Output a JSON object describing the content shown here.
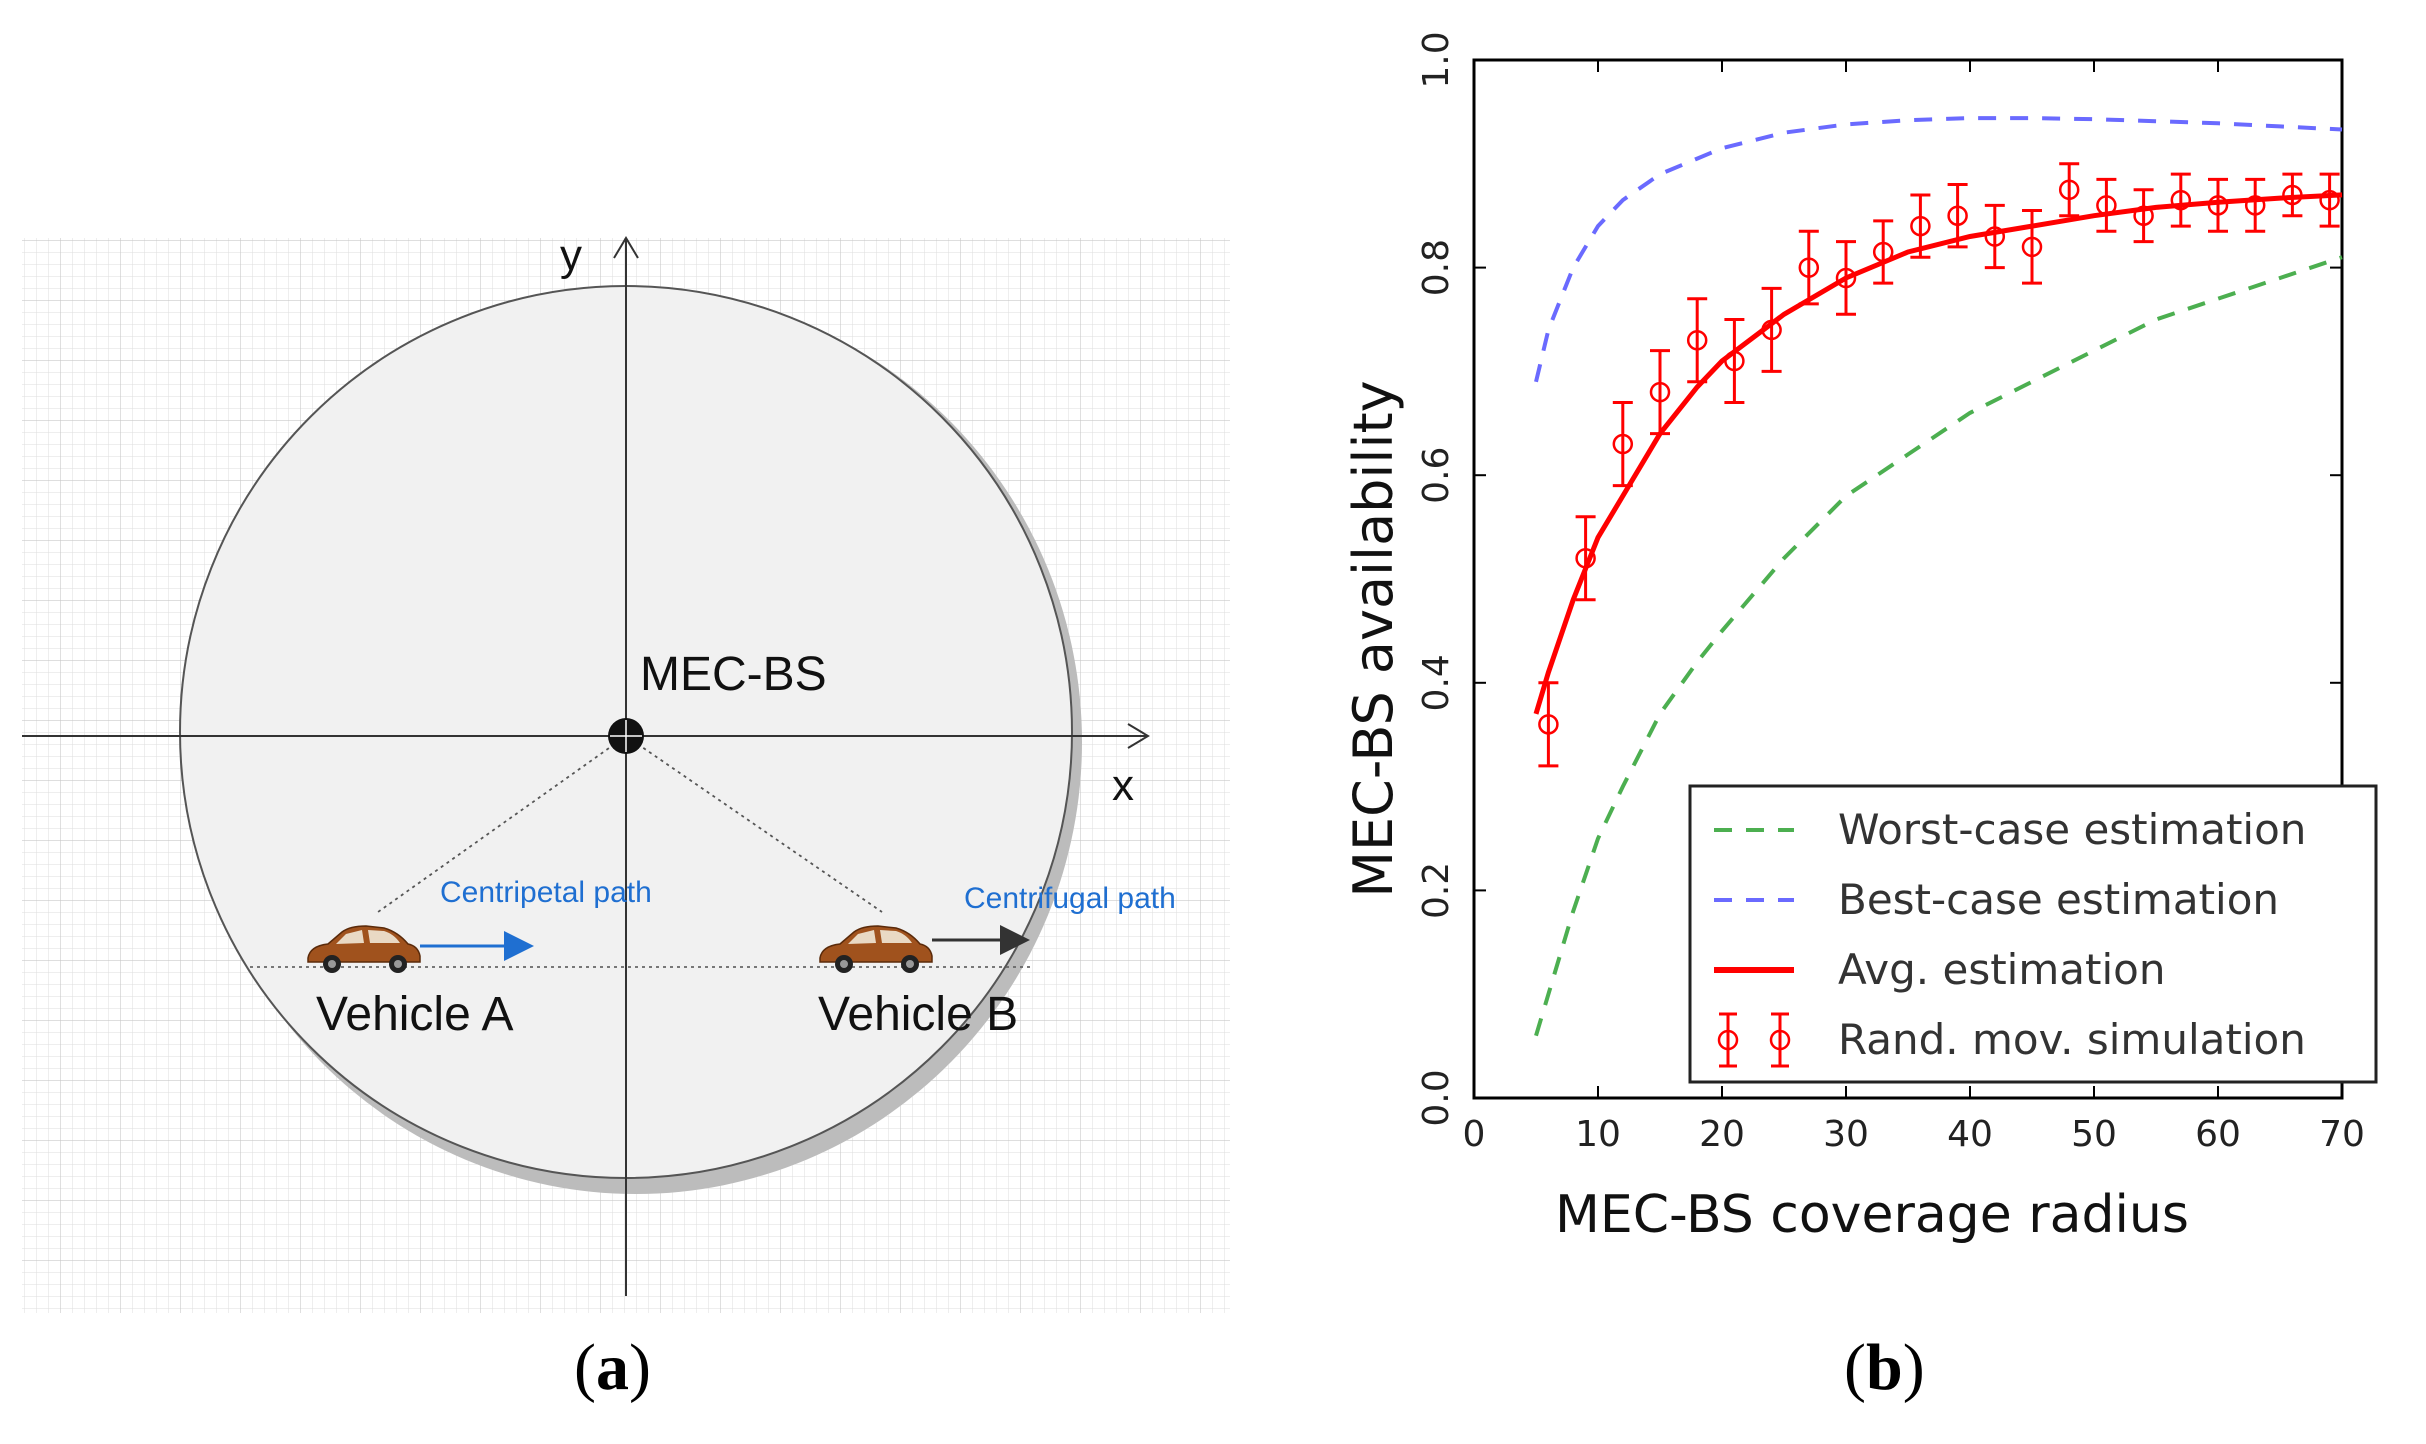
{
  "panel_a": {
    "axis_x_label": "x",
    "axis_y_label": "y",
    "station_label": "MEC-BS",
    "vehicle_a_label": "Vehicle A",
    "vehicle_b_label": "Vehicle B",
    "centripetal_label": "Centripetal path",
    "centrifugal_label": "Centrifugal path",
    "caption": "a",
    "colors": {
      "path_text": "#1f6fd1",
      "circle_fill": "#f1f1f1",
      "car": "#a0521d"
    }
  },
  "panel_b": {
    "caption": "b"
  },
  "chart_data": {
    "type": "line",
    "title": "",
    "xlabel": "MEC-BS coverage radius",
    "ylabel": "MEC-BS availability",
    "xlim": [
      0,
      70
    ],
    "ylim": [
      0.0,
      1.0
    ],
    "xticks": [
      0,
      10,
      20,
      30,
      40,
      50,
      60,
      70
    ],
    "yticks": [
      0.0,
      0.2,
      0.4,
      0.6,
      0.8,
      1.0
    ],
    "xtick_labels": [
      "0",
      "10",
      "20",
      "30",
      "40",
      "50",
      "60",
      "70"
    ],
    "ytick_labels": [
      "0.0",
      "0.2",
      "0.4",
      "0.6",
      "0.8",
      "1.0"
    ],
    "legend_position": "lower-right",
    "series": [
      {
        "name": "Worst-case estimation",
        "style": "dashed",
        "color": "#4caf50",
        "x": [
          5,
          6,
          8,
          10,
          12,
          15,
          18,
          20,
          25,
          30,
          35,
          40,
          45,
          50,
          55,
          60,
          65,
          70
        ],
        "y": [
          0.06,
          0.1,
          0.18,
          0.25,
          0.3,
          0.37,
          0.42,
          0.45,
          0.52,
          0.58,
          0.62,
          0.66,
          0.69,
          0.72,
          0.75,
          0.77,
          0.79,
          0.81
        ]
      },
      {
        "name": "Best-case estimation",
        "style": "dashed",
        "color": "#6a6aff",
        "x": [
          5,
          6,
          8,
          10,
          12,
          15,
          18,
          20,
          25,
          30,
          35,
          40,
          45,
          50,
          55,
          60,
          65,
          70
        ],
        "y": [
          0.69,
          0.74,
          0.8,
          0.84,
          0.865,
          0.89,
          0.905,
          0.915,
          0.93,
          0.938,
          0.942,
          0.944,
          0.944,
          0.943,
          0.941,
          0.939,
          0.936,
          0.933
        ]
      },
      {
        "name": "Avg. estimation",
        "style": "solid",
        "color": "#ff0000",
        "x": [
          5,
          6,
          8,
          10,
          12,
          15,
          18,
          20,
          25,
          30,
          35,
          40,
          45,
          50,
          55,
          60,
          65,
          70
        ],
        "y": [
          0.37,
          0.41,
          0.48,
          0.54,
          0.58,
          0.64,
          0.685,
          0.71,
          0.755,
          0.79,
          0.815,
          0.83,
          0.84,
          0.85,
          0.858,
          0.863,
          0.867,
          0.87
        ]
      },
      {
        "name": "Rand. mov. simulation",
        "style": "errorbar",
        "color": "#ff0000",
        "x": [
          6,
          9,
          12,
          15,
          18,
          21,
          24,
          27,
          30,
          33,
          36,
          39,
          42,
          45,
          48,
          51,
          54,
          57,
          60,
          63,
          66,
          69
        ],
        "y": [
          0.36,
          0.52,
          0.63,
          0.68,
          0.73,
          0.71,
          0.74,
          0.8,
          0.79,
          0.815,
          0.84,
          0.85,
          0.83,
          0.82,
          0.875,
          0.86,
          0.85,
          0.865,
          0.86,
          0.86,
          0.87,
          0.865
        ],
        "err": [
          0.04,
          0.04,
          0.04,
          0.04,
          0.04,
          0.04,
          0.04,
          0.035,
          0.035,
          0.03,
          0.03,
          0.03,
          0.03,
          0.035,
          0.025,
          0.025,
          0.025,
          0.025,
          0.025,
          0.025,
          0.02,
          0.025
        ]
      }
    ]
  }
}
